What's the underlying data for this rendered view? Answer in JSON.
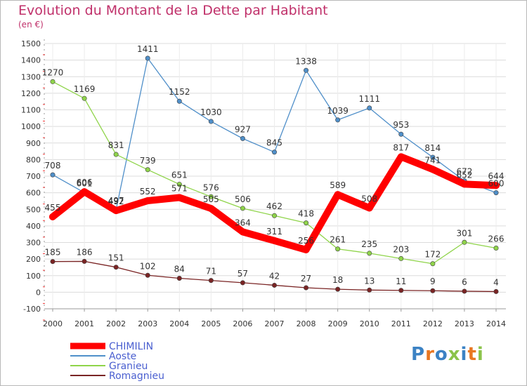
{
  "chart_data": {
    "type": "line",
    "title": "Evolution du Montant de la Dette par Habitant",
    "subtitle": "(en €)",
    "x": [
      "2000",
      "2001",
      "2002",
      "2003",
      "2004",
      "2005",
      "2006",
      "2007",
      "2008",
      "2009",
      "2010",
      "2011",
      "2012",
      "2013",
      "2014"
    ],
    "ylim": [
      -100,
      1500
    ],
    "yticks": [
      -100,
      0,
      100,
      200,
      300,
      400,
      500,
      600,
      700,
      800,
      900,
      1000,
      1100,
      1200,
      1300,
      1400,
      1500
    ],
    "grid": true,
    "legend_position": "bottom-left",
    "series": [
      {
        "name": "CHIMILIN",
        "color": "#ff0000",
        "values": [
          455,
          606,
          492,
          552,
          571,
          505,
          364,
          311,
          256,
          589,
          508,
          817,
          741,
          652,
          644
        ]
      },
      {
        "name": "Aoste",
        "color": "#4f8fc9",
        "values": [
          708,
          601,
          497,
          1411,
          1152,
          1030,
          927,
          845,
          1338,
          1039,
          1111,
          953,
          814,
          672,
          600
        ]
      },
      {
        "name": "Granieu",
        "color": "#8fd44a",
        "values": [
          1270,
          1169,
          831,
          739,
          651,
          576,
          506,
          462,
          418,
          261,
          235,
          203,
          172,
          301,
          266
        ]
      },
      {
        "name": "Romagnieu",
        "color": "#7a2424",
        "values": [
          185,
          186,
          151,
          102,
          84,
          71,
          57,
          42,
          27,
          18,
          13,
          11,
          9,
          6,
          4
        ]
      }
    ]
  },
  "logo": {
    "text": "Proxiti",
    "letters": [
      "P",
      "r",
      "o",
      "x",
      "i",
      "t",
      "i"
    ],
    "colors": [
      "#3b82c4",
      "#e87722",
      "#3b82c4",
      "#8bc34a",
      "#3b82c4",
      "#e87722",
      "#8bc34a"
    ]
  }
}
